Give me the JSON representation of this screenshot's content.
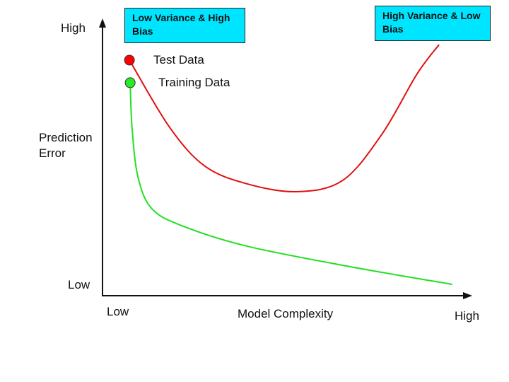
{
  "chart_data": {
    "type": "line",
    "title": "",
    "xlabel": "Model Complexity",
    "ylabel": "Prediction Error",
    "x_ticks": {
      "low": "Low",
      "high": "High"
    },
    "y_ticks": {
      "low": "Low",
      "high": "High"
    },
    "xlim": [
      0,
      100
    ],
    "ylim": [
      0,
      100
    ],
    "grid": false,
    "series": [
      {
        "name": "Test Data",
        "color": "#e01010",
        "marker_color": "#ff0000",
        "x": [
          7.3,
          18.2,
          27.8,
          39.3,
          52.7,
          65.1,
          75.7,
          85.2,
          91.2
        ],
        "y": [
          85.4,
          61.0,
          46.9,
          40.5,
          37.7,
          41.8,
          58.5,
          80.3,
          91.0
        ]
      },
      {
        "name": "Training Data",
        "color": "#22e022",
        "marker_color": "#22ee22",
        "x": [
          7.5,
          8.0,
          9.6,
          13.4,
          22.0,
          39.3,
          68.0,
          94.8
        ],
        "y": [
          77.2,
          61.0,
          43.1,
          31.5,
          25.1,
          17.9,
          10.3,
          4.1
        ]
      }
    ],
    "annotations": [
      "Low Variance & High Bias",
      "High Variance & Low Bias"
    ]
  },
  "colors": {
    "annotation_box": "#00e5ff"
  }
}
